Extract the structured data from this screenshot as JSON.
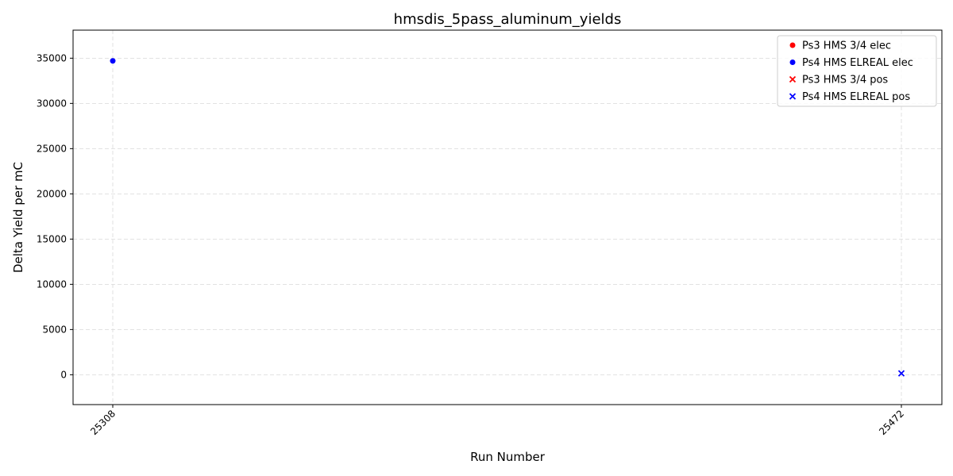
{
  "chart_data": {
    "type": "scatter",
    "title": "hmsdis_5pass_aluminum_yields",
    "xlabel": "Run Number",
    "ylabel": "Delta Yield per mC",
    "x_categories": [
      "25308",
      "25472"
    ],
    "ylim": [
      -3300,
      38100
    ],
    "yticks": [
      0,
      5000,
      10000,
      15000,
      20000,
      25000,
      30000,
      35000
    ],
    "grid": true,
    "legend_position": "top-right",
    "series": [
      {
        "name": "Ps3 HMS 3/4 elec",
        "marker": "circle",
        "color": "#ff0000",
        "points": []
      },
      {
        "name": "Ps4 HMS ELREAL elec",
        "marker": "circle",
        "color": "#0000ff",
        "points": [
          {
            "x": "25308",
            "y": 34700
          }
        ]
      },
      {
        "name": "Ps3 HMS 3/4 pos",
        "marker": "x",
        "color": "#ff0000",
        "points": []
      },
      {
        "name": "Ps4 HMS ELREAL pos",
        "marker": "x",
        "color": "#0000ff",
        "points": [
          {
            "x": "25472",
            "y": 150
          }
        ]
      }
    ]
  }
}
